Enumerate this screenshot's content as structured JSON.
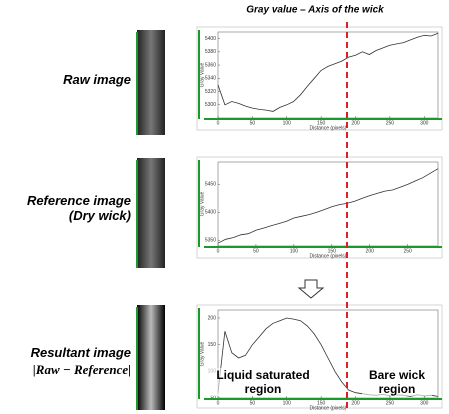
{
  "title": "Gray value – Axis of the wick",
  "labels": [
    "Raw image",
    "Reference image (Dry wick)",
    "Resultant image",
    "|Raw − Reference|"
  ],
  "chart_data": [
    {
      "type": "line",
      "xlabel": "Distance (pixels)",
      "ylabel": "Gray Value",
      "x": [
        0,
        10,
        20,
        30,
        40,
        50,
        60,
        70,
        80,
        90,
        100,
        110,
        120,
        130,
        140,
        150,
        160,
        170,
        180,
        190,
        200,
        210,
        220,
        230,
        240,
        250,
        260,
        270,
        280,
        290,
        300,
        310,
        320
      ],
      "series": [
        {
          "color": "#333333",
          "values": [
            5330,
            5300,
            5305,
            5302,
            5298,
            5295,
            5293,
            5292,
            5290,
            5296,
            5300,
            5305,
            5315,
            5328,
            5340,
            5352,
            5358,
            5362,
            5366,
            5372,
            5375,
            5380,
            5376,
            5382,
            5386,
            5390,
            5392,
            5394,
            5398,
            5402,
            5405,
            5404,
            5408
          ]
        }
      ],
      "xlim": [
        0,
        320
      ],
      "xticks": [
        0,
        50,
        100,
        150,
        200,
        250,
        300
      ],
      "ylim": [
        5280,
        5410
      ],
      "yticks": [
        5300,
        5320,
        5340,
        5360,
        5380,
        5400
      ]
    },
    {
      "type": "line",
      "xlabel": "Distance (pixels)",
      "ylabel": "Gray Value",
      "x": [
        0,
        10,
        20,
        30,
        40,
        50,
        60,
        70,
        80,
        90,
        100,
        110,
        120,
        130,
        140,
        150,
        160,
        170,
        180,
        190,
        200,
        210,
        220,
        230,
        240,
        250,
        260,
        270,
        280,
        290
      ],
      "series": [
        {
          "color": "#333333",
          "values": [
            5345,
            5352,
            5355,
            5360,
            5362,
            5368,
            5372,
            5376,
            5380,
            5384,
            5390,
            5393,
            5396,
            5400,
            5405,
            5410,
            5414,
            5416,
            5420,
            5425,
            5430,
            5434,
            5438,
            5440,
            5445,
            5450,
            5456,
            5462,
            5470,
            5478
          ]
        }
      ],
      "xlim": [
        0,
        290
      ],
      "xticks": [
        0,
        50,
        100,
        150,
        200,
        250
      ],
      "ylim": [
        5340,
        5490
      ],
      "yticks": [
        5350,
        5400,
        5450
      ]
    },
    {
      "type": "line",
      "xlabel": "Distance (pixels)",
      "ylabel": "Gray Value",
      "x": [
        0,
        10,
        20,
        30,
        40,
        50,
        60,
        70,
        80,
        90,
        100,
        110,
        120,
        130,
        140,
        150,
        160,
        170,
        180,
        190,
        200,
        210,
        220,
        230,
        240,
        250,
        260,
        270,
        280,
        290,
        300,
        310,
        320
      ],
      "series": [
        {
          "color": "#333333",
          "values": [
            60,
            175,
            135,
            125,
            130,
            150,
            165,
            180,
            190,
            195,
            200,
            198,
            195,
            185,
            170,
            150,
            125,
            100,
            80,
            65,
            60,
            58,
            56,
            55,
            57,
            54,
            56,
            55,
            53,
            56,
            54,
            55,
            53
          ]
        }
      ],
      "xlim": [
        0,
        320
      ],
      "xticks": [
        0,
        50,
        100,
        150,
        200,
        250,
        300
      ],
      "ylim": [
        50,
        215
      ],
      "yticks": [
        50,
        100,
        150,
        200
      ],
      "annotations": [
        "Liquid saturated region",
        "Bare wick region"
      ]
    }
  ]
}
